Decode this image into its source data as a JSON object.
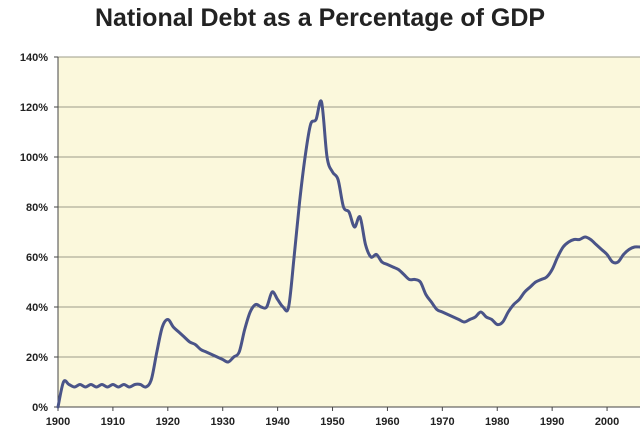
{
  "chart_data": {
    "type": "line",
    "title": "National Debt as a Percentage of GDP",
    "xlabel": "",
    "ylabel": "",
    "x_ticks": [
      1900,
      1910,
      1920,
      1930,
      1940,
      1950,
      1960,
      1970,
      1980,
      1990,
      2000
    ],
    "y_ticks": [
      "0%",
      "20%",
      "40%",
      "60%",
      "80%",
      "100%",
      "120%",
      "140%"
    ],
    "y_tick_values": [
      0,
      20,
      40,
      60,
      80,
      100,
      120,
      140
    ],
    "xlim": [
      1900,
      2006
    ],
    "ylim": [
      0,
      140
    ],
    "grid": "horizontal",
    "legend": "none",
    "colors": {
      "line": "#4a5488",
      "plot_background": "#fbf8dc",
      "gridline": "#9c9c8a"
    },
    "series": [
      {
        "x": [
          1900,
          1901,
          1902,
          1903,
          1904,
          1905,
          1906,
          1907,
          1908,
          1909,
          1910,
          1911,
          1912,
          1913,
          1914,
          1915,
          1916,
          1917,
          1918,
          1919,
          1920,
          1921,
          1922,
          1923,
          1924,
          1925,
          1926,
          1927,
          1928,
          1929,
          1930,
          1931,
          1932,
          1933,
          1934,
          1935,
          1936,
          1937,
          1938,
          1939,
          1940,
          1941,
          1942,
          1943,
          1944,
          1945,
          1946,
          1947,
          1948,
          1949,
          1950,
          1951,
          1952,
          1953,
          1954,
          1955,
          1956,
          1957,
          1958,
          1959,
          1960,
          1961,
          1962,
          1963,
          1964,
          1965,
          1966,
          1967,
          1968,
          1969,
          1970,
          1971,
          1972,
          1973,
          1974,
          1975,
          1976,
          1977,
          1978,
          1979,
          1980,
          1981,
          1982,
          1983,
          1984,
          1985,
          1986,
          1987,
          1988,
          1989,
          1990,
          1991,
          1992,
          1993,
          1994,
          1995,
          1996,
          1997,
          1998,
          1999,
          2000,
          2001,
          2002,
          2003,
          2004,
          2005,
          2006
        ],
        "values": [
          0,
          10,
          9,
          8,
          9,
          8,
          9,
          8,
          9,
          8,
          9,
          8,
          9,
          8,
          9,
          9,
          8,
          11,
          22,
          32,
          35,
          32,
          30,
          28,
          26,
          25,
          23,
          22,
          21,
          20,
          19,
          18,
          20,
          22,
          31,
          38,
          41,
          40,
          40,
          46,
          43,
          40,
          40,
          60,
          82,
          100,
          113,
          115,
          122,
          100,
          94,
          91,
          80,
          78,
          72,
          76,
          65,
          60,
          61,
          58,
          57,
          56,
          55,
          53,
          51,
          51,
          50,
          45,
          42,
          39,
          38,
          37,
          36,
          35,
          34,
          35,
          36,
          38,
          36,
          35,
          33,
          34,
          38,
          41,
          43,
          46,
          48,
          50,
          51,
          52,
          55,
          60,
          64,
          66,
          67,
          67,
          68,
          67,
          65,
          63,
          61,
          58,
          58,
          61,
          63,
          64,
          64
        ]
      }
    ]
  }
}
